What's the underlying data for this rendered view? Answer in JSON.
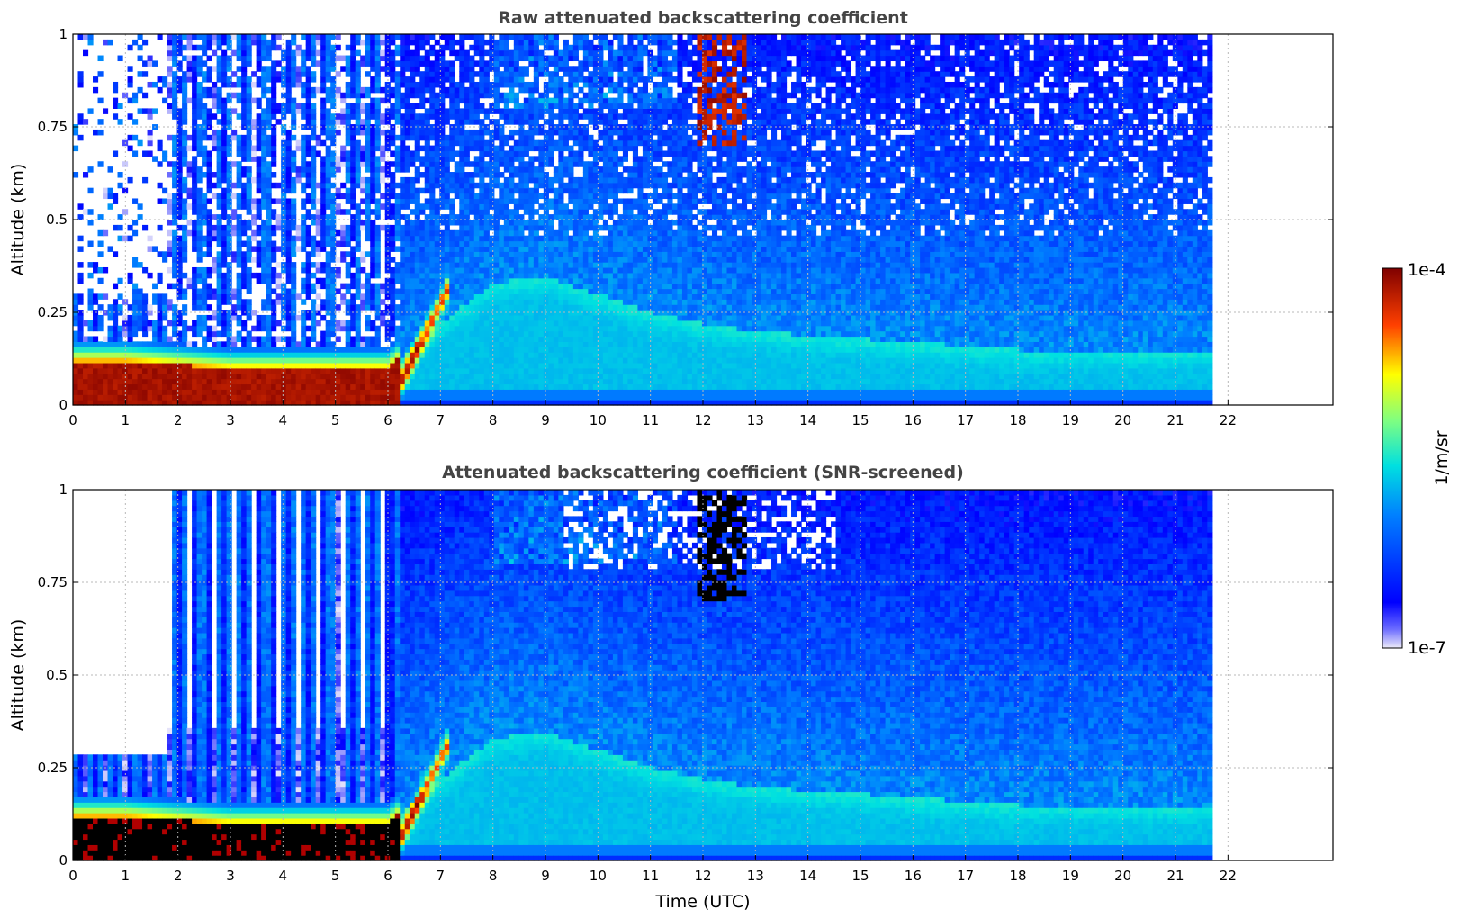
{
  "chart_data": [
    {
      "type": "heatmap",
      "title": "Raw attenuated backscattering coefficient",
      "xlabel": "",
      "ylabel": "Altitude (km)",
      "xlim": [
        0,
        24
      ],
      "ylim": [
        0,
        1
      ],
      "xticks": [
        0,
        1,
        2,
        3,
        4,
        5,
        6,
        7,
        8,
        9,
        10,
        11,
        12,
        13,
        14,
        15,
        16,
        17,
        18,
        19,
        20,
        21,
        22
      ],
      "yticks": [
        0,
        0.25,
        0.5,
        0.75,
        1
      ],
      "ytick_labels": [
        "0",
        "0.25",
        "0.5",
        "0.75",
        "1"
      ],
      "grid": true,
      "data_time_range": [
        0,
        21.7
      ],
      "colorscale": "jet",
      "log_scale": true,
      "features": {
        "aerosol_layer_top_km": [
          0.12,
          0.12,
          0.11,
          0.1,
          0.1,
          0.1,
          0.1,
          0.22,
          0.33,
          0.35,
          0.3,
          0.25,
          0.22,
          0.2,
          0.19,
          0.18,
          0.17,
          0.16,
          0.15,
          0.15,
          0.15,
          0.15
        ],
        "cloud_events": [
          {
            "start": 11.85,
            "end": 12.85,
            "base_km": 0.7,
            "top_km": 1.0
          }
        ]
      }
    },
    {
      "type": "heatmap",
      "title": "Attenuated backscattering coefficient (SNR-screened)",
      "xlabel": "Time (UTC)",
      "ylabel": "Altitude (km)",
      "xlim": [
        0,
        24
      ],
      "ylim": [
        0,
        1
      ],
      "xticks": [
        0,
        1,
        2,
        3,
        4,
        5,
        6,
        7,
        8,
        9,
        10,
        11,
        12,
        13,
        14,
        15,
        16,
        17,
        18,
        19,
        20,
        21,
        22
      ],
      "yticks": [
        0,
        0.25,
        0.5,
        0.75,
        1
      ],
      "ytick_labels": [
        "0",
        "0.25",
        "0.5",
        "0.75",
        "1"
      ],
      "grid": true,
      "data_time_range": [
        0,
        21.7
      ],
      "colorscale": "jet",
      "log_scale": true,
      "screened": true
    }
  ],
  "colorbar": {
    "max_label": "1e-4",
    "min_label": "1e-7",
    "unit_label": "1/m/sr",
    "colors": [
      "#e6e6fa",
      "#0000ff",
      "#00bfff",
      "#7fff7f",
      "#ffff00",
      "#ff4000",
      "#800000"
    ]
  }
}
